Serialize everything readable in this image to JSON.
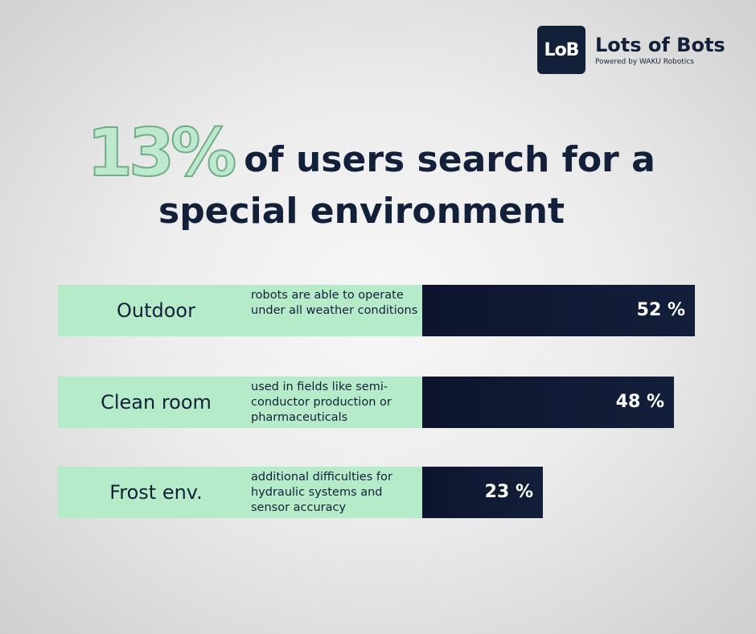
{
  "logo": {
    "mark": "LoB",
    "name": "Lots of Bots",
    "subtitle": "Powered by WAKU Robotics"
  },
  "headline": {
    "big_number": "13%",
    "line1_rest": "of users search for a",
    "line2": "special environment"
  },
  "colors": {
    "row_background": "#b6ebc9",
    "bar": "#131f3a",
    "text": "#13203a",
    "big_number_fill": "#bfe9cf"
  },
  "chart_data": {
    "type": "bar",
    "orientation": "horizontal",
    "categories": [
      "Outdoor",
      "Clean room",
      "Frost env."
    ],
    "descriptions": [
      "robots are able to operate under all weather conditions",
      "used in fields like semi-conductor production or pharmaceuticals",
      "additional difficulties for hydraulic systems and sensor accuracy"
    ],
    "values": [
      52,
      48,
      23
    ],
    "value_labels": [
      "52 %",
      "48 %",
      "23 %"
    ],
    "unit": "%",
    "grid": false,
    "legend": "none"
  }
}
